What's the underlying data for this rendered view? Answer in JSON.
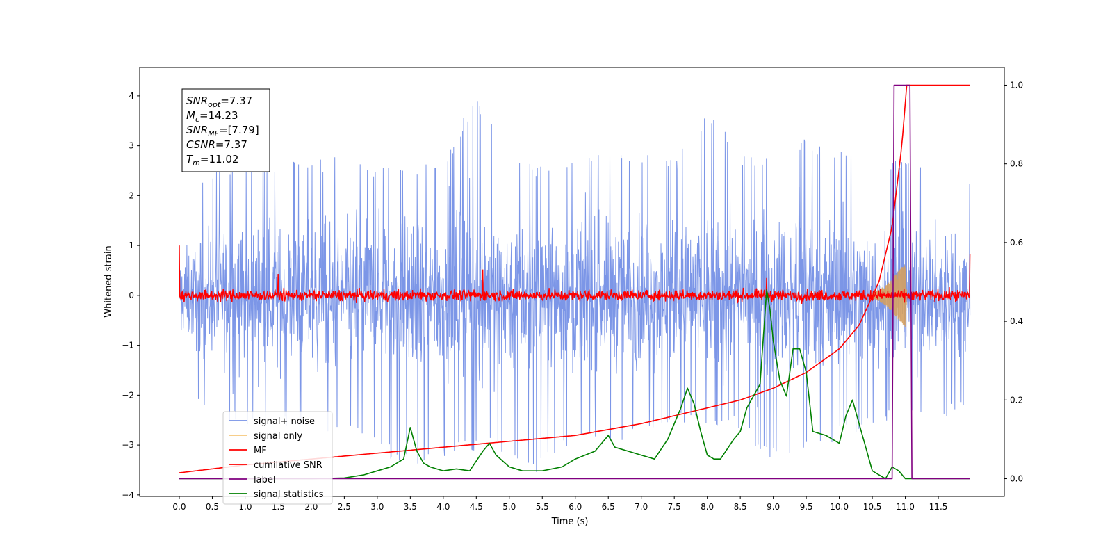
{
  "chart_data": {
    "type": "line",
    "xlabel": "Time (s)",
    "ylabel": "Whitened strain",
    "xlim": [
      -0.6,
      12.5
    ],
    "ylim": [
      -4.03,
      4.57
    ],
    "y2lim": [
      -0.045,
      1.045
    ],
    "x_ticks": [
      "0.0",
      "0.5",
      "1.0",
      "1.5",
      "2.0",
      "2.5",
      "3.0",
      "3.5",
      "4.0",
      "4.5",
      "5.0",
      "5.5",
      "6.0",
      "6.5",
      "7.0",
      "7.5",
      "8.0",
      "8.5",
      "9.0",
      "9.5",
      "10.0",
      "10.5",
      "11.0",
      "11.5"
    ],
    "y_ticks": [
      "−4",
      "−3",
      "−2",
      "−1",
      "0",
      "1",
      "2",
      "3",
      "4"
    ],
    "y2_ticks": [
      "0.0",
      "0.2",
      "0.4",
      "0.6",
      "0.8",
      "1.0"
    ],
    "grid": false,
    "legend_position": "lower-left",
    "annotation": {
      "lines": [
        {
          "label": "SNR",
          "sub": "opt",
          "value": "=7.37"
        },
        {
          "label": "M",
          "sub": "c",
          "value": "=14.23"
        },
        {
          "label": "SNR",
          "sub": "MF",
          "value": "=[7.79]"
        },
        {
          "label": "CSNR",
          "sub": "",
          "value": "=7.37"
        },
        {
          "label": "T",
          "sub": "m",
          "value": "=11.02"
        }
      ]
    },
    "series": [
      {
        "name": "signal+ noise",
        "color": "#7590e6",
        "axis": "left",
        "x_range": [
          0.0,
          11.98
        ],
        "envelope_upper": [
          [
            0.0,
            1.8
          ],
          [
            0.5,
            2.5
          ],
          [
            1.0,
            2.7
          ],
          [
            1.5,
            2.7
          ],
          [
            2.0,
            2.7
          ],
          [
            2.5,
            2.8
          ],
          [
            3.0,
            2.6
          ],
          [
            3.5,
            2.6
          ],
          [
            4.0,
            2.7
          ],
          [
            4.5,
            4.15
          ],
          [
            5.0,
            2.7
          ],
          [
            5.5,
            2.6
          ],
          [
            6.0,
            2.9
          ],
          [
            6.5,
            2.8
          ],
          [
            7.0,
            2.9
          ],
          [
            7.5,
            2.7
          ],
          [
            8.0,
            3.85
          ],
          [
            8.5,
            2.8
          ],
          [
            9.0,
            2.9
          ],
          [
            9.5,
            3.2
          ],
          [
            10.0,
            2.9
          ],
          [
            10.5,
            2.9
          ],
          [
            11.0,
            2.7
          ],
          [
            11.5,
            2.6
          ],
          [
            11.98,
            2.3
          ]
        ],
        "envelope_lower": [
          [
            0.0,
            -1.5
          ],
          [
            0.5,
            -2.5
          ],
          [
            1.0,
            -2.6
          ],
          [
            1.5,
            -2.6
          ],
          [
            2.0,
            -2.9
          ],
          [
            2.5,
            -2.7
          ],
          [
            3.0,
            -3.2
          ],
          [
            3.5,
            -3.4
          ],
          [
            4.0,
            -3.3
          ],
          [
            4.5,
            -3.1
          ],
          [
            5.0,
            -3.2
          ],
          [
            5.3,
            -3.55
          ],
          [
            5.5,
            -3.55
          ],
          [
            6.0,
            -3.0
          ],
          [
            6.5,
            -3.1
          ],
          [
            7.0,
            -2.8
          ],
          [
            7.5,
            -2.6
          ],
          [
            8.0,
            -2.6
          ],
          [
            8.5,
            -2.7
          ],
          [
            9.0,
            -3.4
          ],
          [
            9.5,
            -3.2
          ],
          [
            10.0,
            -2.9
          ],
          [
            10.5,
            -2.6
          ],
          [
            11.0,
            -2.4
          ],
          [
            11.5,
            -2.5
          ],
          [
            11.98,
            -2.2
          ]
        ]
      },
      {
        "name": "signal only",
        "color": "#f6c77a",
        "axis": "left",
        "x": [
          10.5,
          10.6,
          10.7,
          10.8,
          10.9,
          11.0,
          11.02
        ],
        "amplitude": [
          0.05,
          0.12,
          0.2,
          0.32,
          0.5,
          0.65,
          0.1
        ]
      },
      {
        "name": "MF",
        "color": "#ff0000",
        "axis": "left",
        "x_range": [
          0.0,
          11.98
        ],
        "amplitude": 0.2,
        "spikes": [
          [
            0.0,
            1.0
          ],
          [
            1.5,
            0.43
          ],
          [
            4.6,
            0.52
          ],
          [
            8.9,
            0.35
          ],
          [
            11.98,
            0.82
          ]
        ]
      },
      {
        "name": "cumilative SNR",
        "color": "#ff0000",
        "axis": "right",
        "x": [
          0.0,
          0.5,
          1.0,
          2.0,
          3.0,
          4.0,
          5.0,
          6.0,
          7.0,
          7.5,
          8.0,
          8.5,
          9.0,
          9.5,
          10.0,
          10.3,
          10.6,
          10.8,
          10.95,
          11.02,
          11.05,
          11.98
        ],
        "y": [
          0.015,
          0.025,
          0.035,
          0.05,
          0.065,
          0.08,
          0.095,
          0.11,
          0.14,
          0.16,
          0.18,
          0.2,
          0.23,
          0.27,
          0.33,
          0.39,
          0.5,
          0.64,
          0.85,
          1.0,
          1.0,
          1.0
        ]
      },
      {
        "name": "label",
        "color": "#800080",
        "axis": "right",
        "x": [
          0.0,
          10.8,
          10.83,
          11.07,
          11.1,
          11.98
        ],
        "y": [
          0.0,
          0.0,
          1.0,
          1.0,
          0.0,
          0.0
        ]
      },
      {
        "name": "signal statistics",
        "color": "#008000",
        "axis": "right",
        "x": [
          0.0,
          1.0,
          2.0,
          2.5,
          2.8,
          3.0,
          3.2,
          3.4,
          3.5,
          3.6,
          3.7,
          3.8,
          4.0,
          4.2,
          4.4,
          4.6,
          4.7,
          4.8,
          5.0,
          5.2,
          5.5,
          5.8,
          6.0,
          6.3,
          6.5,
          6.6,
          6.8,
          7.0,
          7.2,
          7.4,
          7.5,
          7.6,
          7.7,
          7.8,
          7.9,
          8.0,
          8.1,
          8.2,
          8.4,
          8.5,
          8.6,
          8.7,
          8.8,
          8.9,
          8.95,
          9.0,
          9.1,
          9.2,
          9.3,
          9.4,
          9.5,
          9.6,
          9.8,
          10.0,
          10.1,
          10.2,
          10.3,
          10.4,
          10.5,
          10.6,
          10.7,
          10.8,
          10.9,
          11.0,
          11.2,
          11.5,
          11.98
        ],
        "y": [
          0.0,
          0.0,
          0.0,
          0.002,
          0.01,
          0.02,
          0.03,
          0.05,
          0.13,
          0.07,
          0.04,
          0.03,
          0.02,
          0.025,
          0.02,
          0.07,
          0.09,
          0.06,
          0.03,
          0.02,
          0.02,
          0.03,
          0.05,
          0.07,
          0.11,
          0.08,
          0.07,
          0.06,
          0.05,
          0.1,
          0.14,
          0.18,
          0.23,
          0.19,
          0.12,
          0.06,
          0.05,
          0.05,
          0.1,
          0.12,
          0.18,
          0.21,
          0.24,
          0.48,
          0.43,
          0.35,
          0.25,
          0.21,
          0.33,
          0.33,
          0.27,
          0.12,
          0.11,
          0.09,
          0.16,
          0.2,
          0.14,
          0.08,
          0.02,
          0.01,
          0.0,
          0.03,
          0.02,
          0.0,
          0.0,
          0.0,
          0.0
        ]
      }
    ]
  }
}
